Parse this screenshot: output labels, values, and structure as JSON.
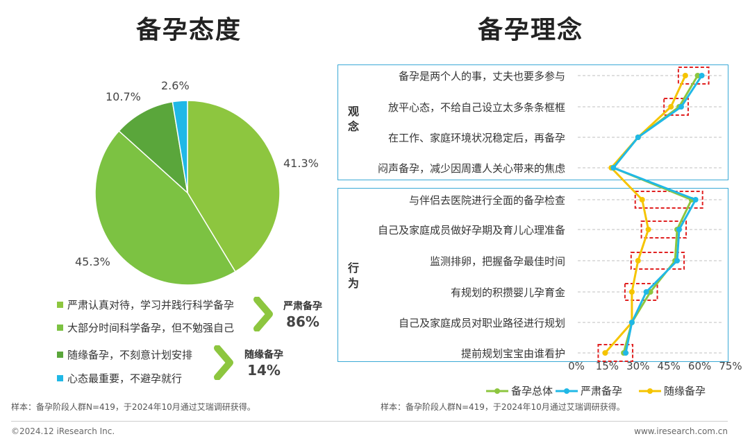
{
  "left": {
    "title": "备孕态度",
    "pie": {
      "slices": [
        {
          "label": "严肃认真对待，学习并践行科学备孕",
          "value": 41.3,
          "value_label": "41.3%",
          "color": "#8dc63f"
        },
        {
          "label": "大部分时间科学备孕，但不勉强自己",
          "value": 45.3,
          "value_label": "45.3%",
          "color": "#7cc242"
        },
        {
          "label": "随缘备孕，不刻意计划安排",
          "value": 10.7,
          "value_label": "10.7%",
          "color": "#5aa63b"
        },
        {
          "label": "心态最重要，不避孕就行",
          "value": 2.6,
          "value_label": "2.6%",
          "color": "#20b8e6"
        }
      ]
    },
    "groups": [
      {
        "name": "严肃备孕",
        "value": "86%"
      },
      {
        "name": "随缘备孕",
        "value": "14%"
      }
    ],
    "source": "样本：备孕阶段人群N=419，于2024年10月通过艾瑞调研获得。"
  },
  "right": {
    "title": "备孕理念",
    "sections": [
      {
        "name": "观念",
        "chars": [
          "观",
          "念"
        ]
      },
      {
        "name": "行为",
        "chars": [
          "行",
          "为"
        ]
      }
    ],
    "source": "样本：备孕阶段人群N=419，于2024年10月通过艾瑞调研获得。"
  },
  "chart_data": [
    {
      "type": "pie",
      "title": "备孕态度",
      "categories": [
        "严肃认真对待，学习并践行科学备孕",
        "大部分时间科学备孕，但不勉强自己",
        "随缘备孕，不刻意计划安排",
        "心态最重要，不避孕就行"
      ],
      "values": [
        41.3,
        45.3,
        10.7,
        2.6
      ]
    },
    {
      "type": "line",
      "title": "备孕理念",
      "orientation": "horizontal",
      "categories": [
        "备孕是两个人的事，丈夫也要多参与",
        "放平心态，不给自己设立太多条条框框",
        "在工作、家庭环境状况稳定后，再备孕",
        "闷声备孕，减少因周遭人关心带来的焦虑",
        "与伴侣去医院进行全面的备孕检查",
        "自己及家庭成员做好孕期及育儿心理准备",
        "监测排卵，把握备孕最佳时间",
        "有规划的积攒婴儿孕育金",
        "自己及家庭成员对职业路径进行规划",
        "提前规划宝宝由谁看护"
      ],
      "xlim": [
        0,
        75
      ],
      "xticks": [
        "0%",
        "15%",
        "30%",
        "45%",
        "60%",
        "75%"
      ],
      "xtick_values": [
        0,
        15,
        30,
        45,
        60,
        75
      ],
      "series": [
        {
          "name": "备孕总体",
          "color": "#8dc63f",
          "values": [
            59,
            50,
            30,
            18,
            56,
            49,
            48,
            36,
            27,
            23
          ]
        },
        {
          "name": "严肃备孕",
          "color": "#20b8e6",
          "values": [
            61,
            51,
            30,
            18,
            58,
            50,
            49,
            34,
            27,
            24
          ]
        },
        {
          "name": "随缘备孕",
          "color": "#f5c400",
          "values": [
            53,
            46,
            30,
            17,
            32,
            35,
            30,
            27,
            27,
            14
          ]
        }
      ],
      "highlighted_categories": [
        0,
        1,
        4,
        5,
        6,
        7,
        9
      ]
    }
  ],
  "footer": {
    "copyright": "©2024.12 iResearch Inc.",
    "website": "www.iresearch.com.cn"
  }
}
